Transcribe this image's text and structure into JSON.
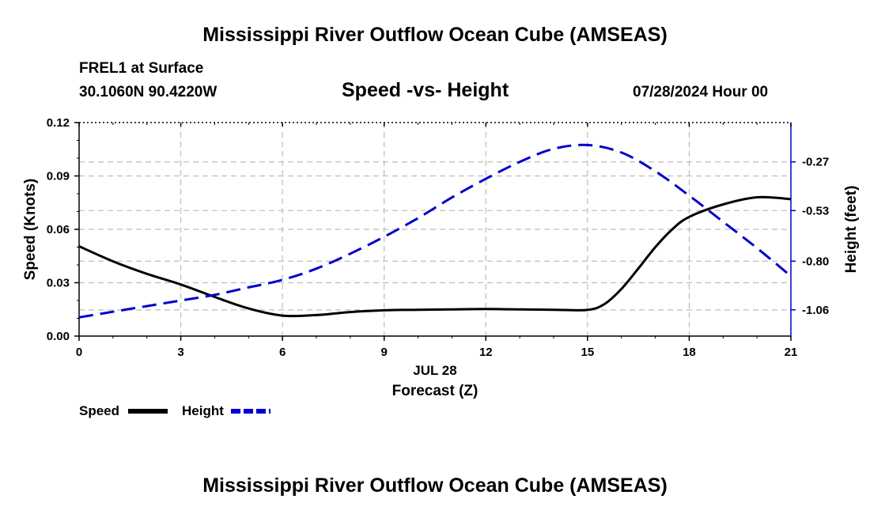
{
  "page": {
    "title": "Mississippi River Outflow Ocean Cube (AMSEAS)",
    "footer_title": "Mississippi River Outflow Ocean Cube (AMSEAS)",
    "station": "FREL1 at Surface",
    "coords": "30.1060N  90.4220W",
    "subtitle": "Speed -vs- Height",
    "datetime": "07/28/2024 Hour 00"
  },
  "chart_data": {
    "type": "line",
    "title": "Speed -vs- Height",
    "xlabel": "Forecast (Z)",
    "xlabel_date": "JUL 28",
    "ylabel": "Speed (Knots)",
    "y2label": "Height (feet)",
    "xlim": [
      0,
      21
    ],
    "ylim": [
      0,
      0.12
    ],
    "y2lim": [
      -1.2,
      -0.06
    ],
    "grid": true,
    "x_ticks": [
      "0",
      "3",
      "6",
      "9",
      "12",
      "15",
      "18",
      "21"
    ],
    "y_ticks": [
      "0.00",
      "0.03",
      "0.06",
      "0.09",
      "0.12"
    ],
    "y2_ticks": [
      "-1.06",
      "-0.80",
      "-0.53",
      "-0.27"
    ],
    "series": [
      {
        "name": "Speed",
        "axis": "left",
        "color": "#000000",
        "style": "solid",
        "x": [
          0,
          1,
          2,
          3,
          4,
          5,
          6,
          7,
          8,
          9,
          10,
          11,
          12,
          13,
          14,
          15,
          15.5,
          16,
          16.5,
          17,
          17.5,
          18,
          19,
          20,
          21
        ],
        "values": [
          0.0505,
          0.042,
          0.035,
          0.029,
          0.022,
          0.0155,
          0.0115,
          0.0118,
          0.0135,
          0.0145,
          0.0148,
          0.015,
          0.0152,
          0.015,
          0.0148,
          0.0147,
          0.018,
          0.0265,
          0.038,
          0.05,
          0.06,
          0.067,
          0.074,
          0.078,
          0.077
        ]
      },
      {
        "name": "Height",
        "axis": "right",
        "color": "#0000cc",
        "style": "dashed",
        "x": [
          0,
          1,
          2,
          3,
          4,
          5,
          6,
          7,
          8,
          9,
          10,
          11,
          12,
          13,
          14,
          15,
          16,
          17,
          18,
          19,
          20,
          21
        ],
        "values": [
          -1.1,
          -1.07,
          -1.04,
          -1.01,
          -0.98,
          -0.94,
          -0.9,
          -0.84,
          -0.76,
          -0.67,
          -0.57,
          -0.46,
          -0.36,
          -0.27,
          -0.2,
          -0.18,
          -0.22,
          -0.32,
          -0.45,
          -0.59,
          -0.73,
          -0.88
        ]
      }
    ],
    "legend": [
      {
        "label": "Speed",
        "color": "#000000",
        "style": "solid"
      },
      {
        "label": "Height",
        "color": "#0000cc",
        "style": "dashed"
      }
    ]
  }
}
